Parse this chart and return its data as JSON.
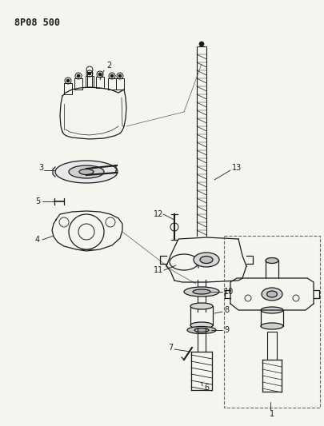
{
  "title": "8P08 500",
  "bg_color": "#f5f5f0",
  "line_color": "#1a1a1a",
  "fig_width": 4.05,
  "fig_height": 5.33,
  "dpi": 100
}
